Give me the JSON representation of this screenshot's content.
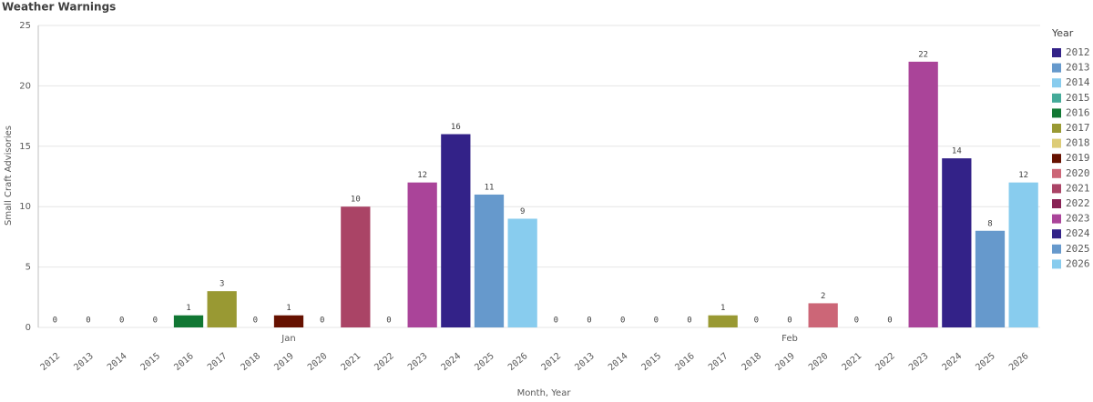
{
  "chart_data": {
    "type": "bar",
    "title": "Weather Warnings",
    "x_label": "Month, Year",
    "y_label": "Small Craft Advisories",
    "legend_title": "Year",
    "categories": [
      "Jan",
      "Feb"
    ],
    "series": [
      {
        "name": "2012",
        "color": "#332288",
        "values": [
          0,
          0
        ]
      },
      {
        "name": "2013",
        "color": "#6699cc",
        "values": [
          0,
          0
        ]
      },
      {
        "name": "2014",
        "color": "#88ccee",
        "values": [
          0,
          0
        ]
      },
      {
        "name": "2015",
        "color": "#44aa99",
        "values": [
          0,
          0
        ]
      },
      {
        "name": "2016",
        "color": "#117733",
        "values": [
          1,
          0
        ]
      },
      {
        "name": "2017",
        "color": "#999933",
        "values": [
          3,
          1
        ]
      },
      {
        "name": "2018",
        "color": "#ddcc77",
        "values": [
          0,
          0
        ]
      },
      {
        "name": "2019",
        "color": "#661100",
        "values": [
          1,
          0
        ]
      },
      {
        "name": "2020",
        "color": "#cc6677",
        "values": [
          0,
          2
        ]
      },
      {
        "name": "2021",
        "color": "#aa4466",
        "values": [
          10,
          0
        ]
      },
      {
        "name": "2022",
        "color": "#882255",
        "values": [
          0,
          0
        ]
      },
      {
        "name": "2023",
        "color": "#aa4499",
        "values": [
          12,
          22
        ]
      },
      {
        "name": "2024",
        "color": "#332288",
        "values": [
          16,
          14
        ]
      },
      {
        "name": "2025",
        "color": "#6699cc",
        "values": [
          11,
          8
        ]
      },
      {
        "name": "2026",
        "color": "#88ccee",
        "values": [
          9,
          12
        ]
      }
    ],
    "ylim": [
      0,
      25
    ],
    "yticks": [
      0,
      5,
      10,
      15,
      20,
      25
    ],
    "grid": true,
    "legend": "right"
  }
}
